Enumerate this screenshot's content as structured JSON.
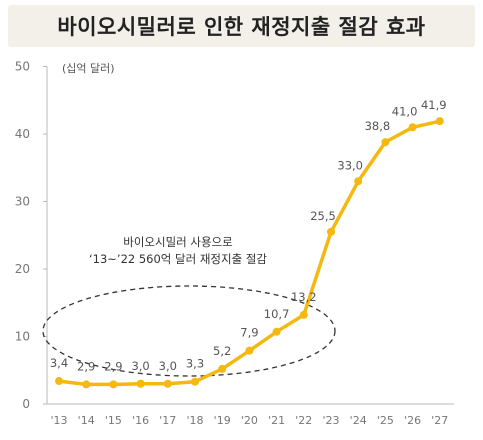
{
  "title": "바이오시밀러로 인한 재정지출 절감 효과",
  "chart_data": {
    "type": "line",
    "unit_label": "(십억 달러)",
    "categories": [
      "'13",
      "'14",
      "'15",
      "'16",
      "'17",
      "'18",
      "'19",
      "'20",
      "'21",
      "'22",
      "'23",
      "'24",
      "'25",
      "'26",
      "'27"
    ],
    "series": [
      {
        "values": [
          3.4,
          2.9,
          2.9,
          3.0,
          3.0,
          3.3,
          5.2,
          7.9,
          10.7,
          13.2,
          25.5,
          33.0,
          38.8,
          41.0,
          41.9
        ]
      }
    ],
    "data_labels": [
      "3,4",
      "2,9",
      "2,9",
      "3,0",
      "3,0",
      "3,3",
      "5,2",
      "7,9",
      "10,7",
      "13,2",
      "25,5",
      "33,0",
      "38,8",
      "41,0",
      "41,9"
    ],
    "y_ticks": [
      0,
      10,
      20,
      30,
      40,
      50
    ],
    "ylim": [
      0,
      50
    ],
    "annotation": {
      "line1": "바이오시밀러 사용으로",
      "line2": "‘13~’22 560억 달러 재정지출 절감"
    },
    "colors": {
      "line": "#f5b80f",
      "axis": "#b9b9b9",
      "tick_text": "#777777",
      "label_text": "#555555",
      "ellipse": "#333333"
    }
  }
}
